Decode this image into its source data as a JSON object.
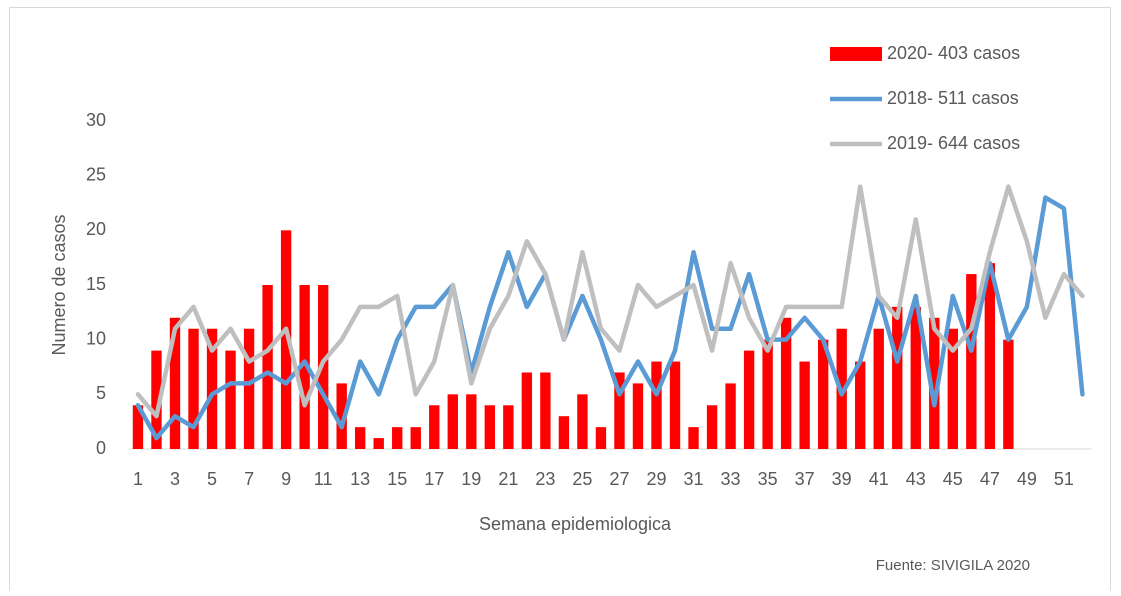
{
  "chart_data": {
    "type": "bar",
    "x_label": "Semana epidemiologica",
    "y_label": "Numero de casos",
    "annotation": "Fuente: SIVIGILA 2020",
    "categories": [
      1,
      null,
      3,
      null,
      5,
      null,
      7,
      null,
      9,
      null,
      11,
      null,
      13,
      null,
      15,
      null,
      17,
      null,
      19,
      null,
      21,
      null,
      23,
      null,
      25,
      null,
      27,
      null,
      29,
      null,
      31,
      null,
      33,
      null,
      35,
      null,
      37,
      null,
      39,
      null,
      41,
      null,
      43,
      null,
      45,
      null,
      47,
      null,
      49,
      null,
      51,
      null
    ],
    "series": [
      {
        "name": "2020- 403 casos",
        "type": "bar",
        "color": "#ff0000",
        "values": [
          4,
          9,
          12,
          11,
          11,
          9,
          11,
          15,
          20,
          15,
          15,
          6,
          2,
          1,
          2,
          2,
          4,
          5,
          5,
          4,
          4,
          7,
          7,
          3,
          5,
          2,
          7,
          6,
          8,
          8,
          2,
          4,
          6,
          9,
          10,
          12,
          8,
          10,
          11,
          8,
          11,
          13,
          13,
          12,
          11,
          16,
          17,
          10,
          null,
          null,
          null,
          null
        ]
      },
      {
        "name": "2018- 511 casos",
        "type": "line",
        "color": "#5b9bd5",
        "values": [
          4,
          1,
          3,
          2,
          5,
          6,
          6,
          7,
          6,
          8,
          5,
          2,
          8,
          5,
          10,
          13,
          13,
          15,
          7,
          13,
          18,
          13,
          16,
          10,
          14,
          10,
          5,
          8,
          5,
          9,
          18,
          11,
          11,
          16,
          10,
          10,
          12,
          10,
          5,
          8,
          14,
          8,
          14,
          4,
          14,
          9,
          17,
          10,
          13,
          23,
          22,
          5
        ]
      },
      {
        "name": "2019- 644 casos",
        "type": "line",
        "color": "#bfbfbf",
        "values": [
          5,
          3,
          11,
          13,
          9,
          11,
          8,
          9,
          11,
          4,
          8,
          10,
          13,
          13,
          14,
          5,
          8,
          15,
          6,
          11,
          14,
          19,
          16,
          10,
          18,
          11,
          9,
          15,
          13,
          14,
          15,
          9,
          17,
          12,
          9,
          13,
          13,
          13,
          13,
          24,
          14,
          12,
          21,
          11,
          9,
          11,
          18,
          24,
          19,
          12,
          16,
          14
        ]
      }
    ],
    "ylim": [
      0,
      30
    ],
    "yticks": [
      0,
      5,
      10,
      15,
      20,
      25,
      30
    ],
    "grid": false,
    "legend": "upper right"
  }
}
